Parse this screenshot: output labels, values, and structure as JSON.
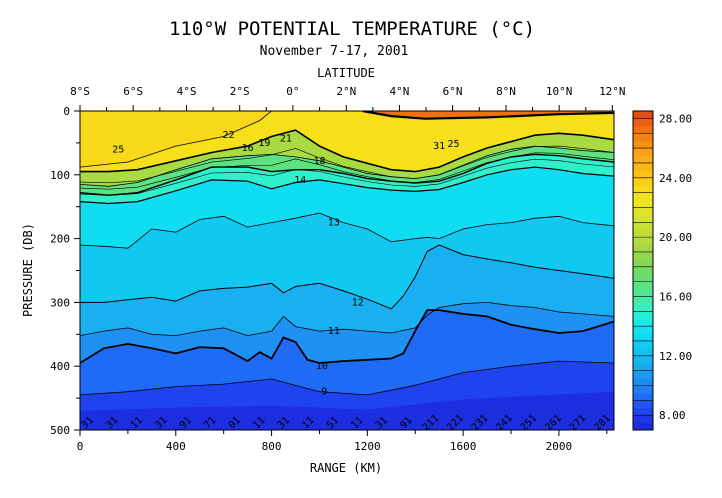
{
  "chart_data": {
    "type": "heatmap",
    "title": "110°W POTENTIAL TEMPERATURE (°C)",
    "subtitle": "November 7-17, 2001",
    "top_axis_label": "LATITUDE",
    "xlabel": "RANGE (KM)",
    "ylabel": "PRESSURE (DB)",
    "x_ticks": [
      0,
      400,
      800,
      1200,
      1600,
      2000
    ],
    "xlim": [
      0,
      2230
    ],
    "y_ticks": [
      0,
      100,
      200,
      300,
      400,
      500
    ],
    "ylim": [
      500,
      0
    ],
    "lat_ticks": [
      {
        "label": "8°S",
        "km": 0
      },
      {
        "label": "6°S",
        "km": 222
      },
      {
        "label": "4°S",
        "km": 445
      },
      {
        "label": "2°S",
        "km": 667
      },
      {
        "label": "0°",
        "km": 889
      },
      {
        "label": "2°N",
        "km": 1112
      },
      {
        "label": "4°N",
        "km": 1334
      },
      {
        "label": "6°N",
        "km": 1556
      },
      {
        "label": "8°N",
        "km": 1779
      },
      {
        "label": "10°N",
        "km": 2001
      },
      {
        "label": "12°N",
        "km": 2223
      }
    ],
    "colorbar": {
      "min": 7,
      "max": 28.5,
      "ticks": [
        "28.00",
        "24.00",
        "20.00",
        "16.00",
        "12.00",
        "8.00"
      ],
      "tick_values": [
        28,
        24,
        20,
        16,
        12,
        8
      ]
    },
    "isotherms": [
      {
        "temp": 28,
        "points": [
          [
            1180,
            0
          ],
          [
            1300,
            8
          ],
          [
            1440,
            12
          ],
          [
            1700,
            10
          ],
          [
            2000,
            5
          ],
          [
            2230,
            3
          ]
        ]
      },
      {
        "temp": 25,
        "points": [
          [
            0,
            88
          ],
          [
            200,
            80
          ],
          [
            400,
            55
          ],
          [
            600,
            40
          ],
          [
            750,
            15
          ],
          [
            800,
            0
          ]
        ]
      },
      {
        "temp": 22,
        "points": [
          [
            0,
            95
          ],
          [
            120,
            95
          ],
          [
            240,
            92
          ],
          [
            400,
            78
          ],
          [
            550,
            65
          ],
          [
            700,
            55
          ],
          [
            800,
            40
          ],
          [
            900,
            30
          ],
          [
            1000,
            55
          ],
          [
            1100,
            72
          ],
          [
            1200,
            82
          ],
          [
            1300,
            92
          ],
          [
            1400,
            95
          ],
          [
            1500,
            88
          ],
          [
            1600,
            72
          ],
          [
            1700,
            58
          ],
          [
            1800,
            48
          ],
          [
            1900,
            38
          ],
          [
            2000,
            35
          ],
          [
            2100,
            38
          ],
          [
            2230,
            45
          ]
        ]
      },
      {
        "temp": 18,
        "points": [
          [
            0,
            115
          ],
          [
            120,
            118
          ],
          [
            240,
            112
          ],
          [
            400,
            92
          ],
          [
            550,
            75
          ],
          [
            700,
            70
          ],
          [
            800,
            68
          ],
          [
            900,
            72
          ],
          [
            1000,
            78
          ],
          [
            1100,
            88
          ],
          [
            1200,
            98
          ],
          [
            1300,
            103
          ],
          [
            1400,
            106
          ],
          [
            1500,
            100
          ],
          [
            1600,
            85
          ],
          [
            1700,
            70
          ],
          [
            1800,
            60
          ],
          [
            1900,
            55
          ],
          [
            2000,
            58
          ],
          [
            2100,
            62
          ],
          [
            2230,
            65
          ]
        ]
      },
      {
        "temp": 16,
        "points": [
          [
            0,
            128
          ],
          [
            120,
            132
          ],
          [
            240,
            128
          ],
          [
            400,
            108
          ],
          [
            550,
            88
          ],
          [
            700,
            88
          ],
          [
            800,
            95
          ],
          [
            900,
            92
          ],
          [
            1000,
            92
          ],
          [
            1100,
            98
          ],
          [
            1200,
            106
          ],
          [
            1300,
            110
          ],
          [
            1400,
            113
          ],
          [
            1500,
            110
          ],
          [
            1600,
            98
          ],
          [
            1700,
            82
          ],
          [
            1800,
            72
          ],
          [
            1900,
            68
          ],
          [
            2000,
            70
          ],
          [
            2100,
            75
          ],
          [
            2230,
            80
          ]
        ]
      },
      {
        "temp": 14,
        "points": [
          [
            0,
            142
          ],
          [
            120,
            145
          ],
          [
            240,
            142
          ],
          [
            400,
            125
          ],
          [
            550,
            108
          ],
          [
            700,
            110
          ],
          [
            800,
            122
          ],
          [
            900,
            112
          ],
          [
            1000,
            108
          ],
          [
            1100,
            114
          ],
          [
            1200,
            120
          ],
          [
            1300,
            124
          ],
          [
            1400,
            126
          ],
          [
            1500,
            123
          ],
          [
            1600,
            112
          ],
          [
            1700,
            100
          ],
          [
            1800,
            92
          ],
          [
            1900,
            88
          ],
          [
            2000,
            92
          ],
          [
            2100,
            98
          ],
          [
            2230,
            102
          ]
        ]
      },
      {
        "temp": 13,
        "points": [
          [
            0,
            210
          ],
          [
            100,
            212
          ],
          [
            200,
            215
          ],
          [
            300,
            185
          ],
          [
            400,
            190
          ],
          [
            500,
            170
          ],
          [
            600,
            165
          ],
          [
            700,
            182
          ],
          [
            800,
            175
          ],
          [
            900,
            168
          ],
          [
            1000,
            160
          ],
          [
            1100,
            175
          ],
          [
            1200,
            185
          ],
          [
            1300,
            205
          ],
          [
            1400,
            200
          ],
          [
            1450,
            198
          ],
          [
            1500,
            200
          ],
          [
            1600,
            185
          ],
          [
            1700,
            178
          ],
          [
            1800,
            175
          ],
          [
            1900,
            168
          ],
          [
            2000,
            165
          ],
          [
            2100,
            175
          ],
          [
            2230,
            180
          ]
        ]
      },
      {
        "temp": 12,
        "points": [
          [
            0,
            300
          ],
          [
            100,
            300
          ],
          [
            200,
            296
          ],
          [
            300,
            292
          ],
          [
            400,
            298
          ],
          [
            500,
            282
          ],
          [
            600,
            278
          ],
          [
            700,
            276
          ],
          [
            800,
            270
          ],
          [
            850,
            285
          ],
          [
            900,
            275
          ],
          [
            1000,
            270
          ],
          [
            1100,
            282
          ],
          [
            1200,
            295
          ],
          [
            1300,
            310
          ],
          [
            1350,
            290
          ],
          [
            1400,
            260
          ],
          [
            1450,
            220
          ],
          [
            1500,
            210
          ],
          [
            1600,
            225
          ],
          [
            1700,
            232
          ],
          [
            1800,
            238
          ],
          [
            1900,
            245
          ],
          [
            2000,
            250
          ],
          [
            2100,
            255
          ],
          [
            2230,
            262
          ]
        ]
      },
      {
        "temp": 11,
        "points": [
          [
            0,
            352
          ],
          [
            100,
            345
          ],
          [
            200,
            340
          ],
          [
            300,
            350
          ],
          [
            400,
            352
          ],
          [
            500,
            345
          ],
          [
            600,
            340
          ],
          [
            700,
            352
          ],
          [
            800,
            345
          ],
          [
            850,
            322
          ],
          [
            900,
            338
          ],
          [
            1000,
            345
          ],
          [
            1100,
            342
          ],
          [
            1200,
            345
          ],
          [
            1300,
            348
          ],
          [
            1400,
            340
          ],
          [
            1450,
            320
          ],
          [
            1500,
            308
          ],
          [
            1600,
            302
          ],
          [
            1700,
            300
          ],
          [
            1800,
            305
          ],
          [
            1900,
            308
          ],
          [
            2000,
            315
          ],
          [
            2100,
            318
          ],
          [
            2230,
            322
          ]
        ]
      },
      {
        "temp": 10,
        "points": [
          [
            0,
            395
          ],
          [
            100,
            372
          ],
          [
            200,
            365
          ],
          [
            300,
            372
          ],
          [
            400,
            380
          ],
          [
            500,
            370
          ],
          [
            600,
            372
          ],
          [
            700,
            392
          ],
          [
            750,
            378
          ],
          [
            800,
            388
          ],
          [
            850,
            355
          ],
          [
            900,
            362
          ],
          [
            950,
            390
          ],
          [
            1000,
            395
          ],
          [
            1100,
            392
          ],
          [
            1200,
            390
          ],
          [
            1300,
            388
          ],
          [
            1350,
            380
          ],
          [
            1400,
            345
          ],
          [
            1450,
            312
          ],
          [
            1500,
            312
          ],
          [
            1600,
            318
          ],
          [
            1700,
            322
          ],
          [
            1800,
            335
          ],
          [
            1900,
            342
          ],
          [
            2000,
            348
          ],
          [
            2100,
            345
          ],
          [
            2230,
            330
          ]
        ]
      },
      {
        "temp": 9,
        "points": [
          [
            0,
            445
          ],
          [
            200,
            440
          ],
          [
            400,
            432
          ],
          [
            600,
            428
          ],
          [
            800,
            420
          ],
          [
            1000,
            440
          ],
          [
            1200,
            445
          ],
          [
            1400,
            430
          ],
          [
            1600,
            410
          ],
          [
            1800,
            400
          ],
          [
            2000,
            392
          ],
          [
            2230,
            395
          ]
        ]
      }
    ],
    "contour_labels": [
      {
        "text": "25",
        "km": 160,
        "db": 60
      },
      {
        "text": "22",
        "km": 620,
        "db": 38
      },
      {
        "text": "21",
        "km": 860,
        "db": 43
      },
      {
        "text": "19",
        "km": 770,
        "db": 50
      },
      {
        "text": "18",
        "km": 1000,
        "db": 78
      },
      {
        "text": "16",
        "km": 700,
        "db": 58
      },
      {
        "text": "14",
        "km": 920,
        "db": 108
      },
      {
        "text": "13",
        "km": 1060,
        "db": 175
      },
      {
        "text": "12",
        "km": 1160,
        "db": 300
      },
      {
        "text": "11",
        "km": 1060,
        "db": 345
      },
      {
        "text": "10",
        "km": 1010,
        "db": 400
      },
      {
        "text": "9",
        "km": 1020,
        "db": 440
      },
      {
        "text": "25",
        "km": 1560,
        "db": 52
      },
      {
        "text": "31",
        "km": 1500,
        "db": 55
      }
    ],
    "bottom_labels": [
      "31",
      "31",
      "11",
      "31",
      "91",
      "71",
      "01",
      "11",
      "31",
      "11",
      "51",
      "11",
      "31",
      "91",
      "211",
      "221",
      "231",
      "241",
      "251",
      "261",
      "271",
      "281"
    ]
  }
}
